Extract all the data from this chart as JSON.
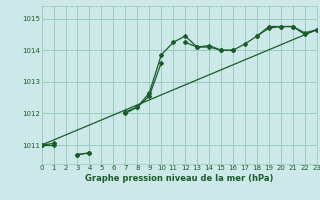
{
  "title": "Graphe pression niveau de la mer (hPa)",
  "bg_color": "#cce8e8",
  "grid_color": "#99ccbb",
  "line_color": "#1a5c2a",
  "text_color": "#1a5c2a",
  "xlim": [
    0,
    23
  ],
  "ylim": [
    1010.4,
    1015.4
  ],
  "yticks": [
    1011,
    1012,
    1013,
    1014,
    1015
  ],
  "xticks": [
    0,
    1,
    2,
    3,
    4,
    5,
    6,
    7,
    8,
    9,
    10,
    11,
    12,
    13,
    14,
    15,
    16,
    17,
    18,
    19,
    20,
    21,
    22,
    23
  ],
  "series1": [
    1011.0,
    1011.0,
    null,
    1010.7,
    1010.75,
    null,
    null,
    1012.0,
    1012.2,
    1012.65,
    1013.85,
    1014.25,
    1014.45,
    1014.1,
    1014.1,
    1014.0,
    1014.0,
    1014.2,
    1014.45,
    1014.75,
    1014.75,
    1014.75,
    1014.55,
    1014.65
  ],
  "series2": [
    1011.0,
    1011.05,
    null,
    1010.7,
    1010.75,
    null,
    null,
    1012.05,
    1012.2,
    1012.55,
    1013.6,
    null,
    1014.25,
    1014.1,
    1014.15,
    1014.0,
    1014.0,
    null,
    1014.45,
    1014.7,
    1014.75,
    1014.75,
    1014.5,
    1014.65
  ],
  "series3_x": [
    0,
    23
  ],
  "series3_y": [
    1011.0,
    1014.65
  ]
}
